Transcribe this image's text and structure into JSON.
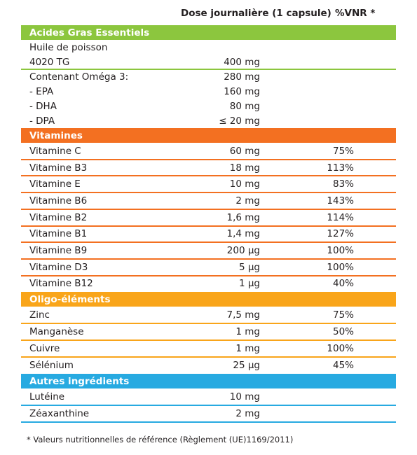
{
  "header": {
    "dose": "Dose journalière (1 capsule)",
    "vnr": "%VNR *"
  },
  "sections": [
    {
      "title": "Acides Gras Essentiels",
      "color": "#8cc63e",
      "groups": [
        [
          {
            "name": "Huile de poisson"
          },
          {
            "name": "4020 TG",
            "dose": "400 mg"
          }
        ],
        [
          {
            "name": "Contenant Oméga 3:",
            "dose": "280 mg"
          },
          {
            "name": "- EPA",
            "dose": "160 mg"
          },
          {
            "name": "- DHA",
            "dose": "80 mg"
          },
          {
            "name": "- DPA",
            "dose": "≤ 20 mg"
          }
        ]
      ]
    },
    {
      "title": "Vitamines",
      "color": "#f37021",
      "groups": [
        [
          {
            "name": "Vitamine C",
            "dose": "60 mg",
            "vnr": "75%"
          }
        ],
        [
          {
            "name": "Vitamine B3",
            "dose": "18 mg",
            "vnr": "113%"
          }
        ],
        [
          {
            "name": "Vitamine E",
            "dose": "10 mg",
            "vnr": "83%"
          }
        ],
        [
          {
            "name": "Vitamine B6",
            "dose": "2 mg",
            "vnr": "143%"
          }
        ],
        [
          {
            "name": "Vitamine B2",
            "dose": "1,6 mg",
            "vnr": "114%"
          }
        ],
        [
          {
            "name": "Vitamine B1",
            "dose": "1,4 mg",
            "vnr": "127%"
          }
        ],
        [
          {
            "name": "Vitamine B9",
            "dose": "200 µg",
            "vnr": "100%"
          }
        ],
        [
          {
            "name": "Vitamine D3",
            "dose": "5 µg",
            "vnr": "100%"
          }
        ],
        [
          {
            "name": "Vitamine B12",
            "dose": "1 µg",
            "vnr": "40%"
          }
        ]
      ]
    },
    {
      "title": "Oligo-éléments",
      "color": "#f9a51a",
      "groups": [
        [
          {
            "name": "Zinc",
            "dose": "7,5 mg",
            "vnr": "75%"
          }
        ],
        [
          {
            "name": "Manganèse",
            "dose": "1 mg",
            "vnr": "50%"
          }
        ],
        [
          {
            "name": "Cuivre",
            "dose": "1 mg",
            "vnr": "100%"
          }
        ],
        [
          {
            "name": "Sélénium",
            "dose": "25 µg",
            "vnr": "45%"
          }
        ]
      ]
    },
    {
      "title": "Autres ingrédients",
      "color": "#27aae1",
      "groups": [
        [
          {
            "name": "Lutéine",
            "dose": "10 mg"
          }
        ],
        [
          {
            "name": "Zéaxanthine",
            "dose": "2 mg"
          }
        ]
      ]
    }
  ],
  "footnote": "* Valeurs nutritionnelles de référence (Règlement (UE)1169/2011)"
}
